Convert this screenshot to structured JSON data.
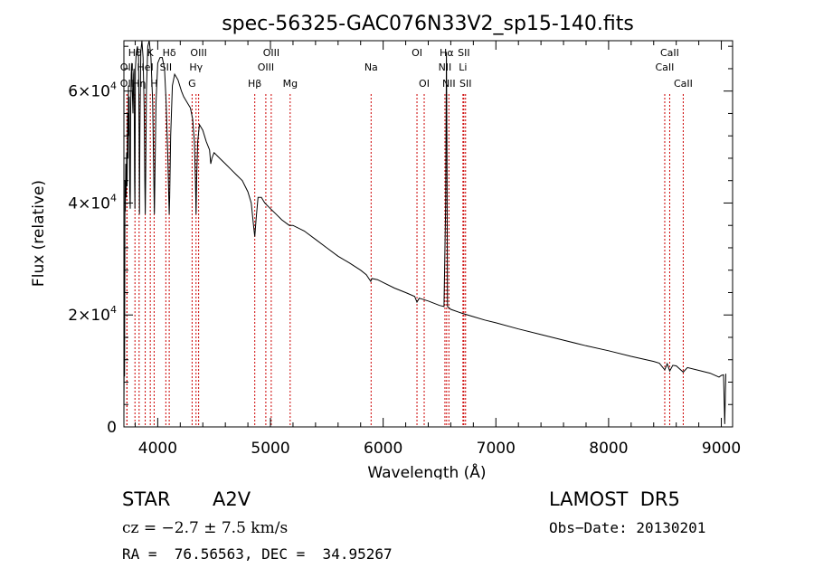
{
  "chart_data": {
    "type": "line",
    "title": "spec-56325-GAC076N33V2_sp15-140.fits",
    "xlabel": "Wavelength (Å)",
    "ylabel": "Flux (relative)",
    "xlim": [
      3700,
      9100
    ],
    "ylim": [
      0,
      69000
    ],
    "x_ticks": [
      4000,
      5000,
      6000,
      7000,
      8000,
      9000
    ],
    "x_tick_labels": [
      "4000",
      "5000",
      "6000",
      "7000",
      "8000",
      "9000"
    ],
    "y_ticks": [
      0,
      20000,
      40000,
      60000
    ],
    "y_tick_labels": [
      {
        "mant": "0",
        "exp": ""
      },
      {
        "mant": "2×10",
        "exp": "4"
      },
      {
        "mant": "4×10",
        "exp": "4"
      },
      {
        "mant": "6×10",
        "exp": "4"
      }
    ],
    "grid": false,
    "line_color": "#000000",
    "marker_color": "#cc0000",
    "series": [
      {
        "points": [
          [
            3700,
            2000
          ],
          [
            3703,
            17000
          ],
          [
            3706,
            9000
          ],
          [
            3710,
            44000
          ],
          [
            3713,
            38500
          ],
          [
            3716,
            47000
          ],
          [
            3720,
            41000
          ],
          [
            3724,
            49000
          ],
          [
            3728,
            43000
          ],
          [
            3733,
            56000
          ],
          [
            3737,
            48000
          ],
          [
            3740,
            61000
          ],
          [
            3743,
            52000
          ],
          [
            3747,
            59000
          ],
          [
            3752,
            42000
          ],
          [
            3756,
            39000
          ],
          [
            3760,
            57000
          ],
          [
            3765,
            63000
          ],
          [
            3770,
            65000
          ],
          [
            3775,
            60000
          ],
          [
            3780,
            56000
          ],
          [
            3786,
            63000
          ],
          [
            3790,
            64000
          ],
          [
            3795,
            44000
          ],
          [
            3798,
            39000
          ],
          [
            3802,
            64000
          ],
          [
            3810,
            67000
          ],
          [
            3820,
            68000
          ],
          [
            3830,
            66000
          ],
          [
            3835,
            52000
          ],
          [
            3838,
            38000
          ],
          [
            3842,
            53000
          ],
          [
            3850,
            67000
          ],
          [
            3860,
            69000
          ],
          [
            3870,
            66000
          ],
          [
            3880,
            57000
          ],
          [
            3885,
            44000
          ],
          [
            3889,
            38000
          ],
          [
            3893,
            45000
          ],
          [
            3900,
            60000
          ],
          [
            3912,
            68000
          ],
          [
            3925,
            69000
          ],
          [
            3940,
            66000
          ],
          [
            3955,
            58000
          ],
          [
            3965,
            45000
          ],
          [
            3970,
            38000
          ],
          [
            3975,
            45000
          ],
          [
            3985,
            58000
          ],
          [
            4000,
            65000
          ],
          [
            4020,
            66000
          ],
          [
            4040,
            66000
          ],
          [
            4060,
            64000
          ],
          [
            4075,
            58000
          ],
          [
            4090,
            48000
          ],
          [
            4098,
            41000
          ],
          [
            4102,
            38000
          ],
          [
            4106,
            41000
          ],
          [
            4115,
            52000
          ],
          [
            4130,
            61000
          ],
          [
            4150,
            63000
          ],
          [
            4180,
            62000
          ],
          [
            4210,
            60000
          ],
          [
            4230,
            59000
          ],
          [
            4260,
            58000
          ],
          [
            4290,
            57000
          ],
          [
            4310,
            55000
          ],
          [
            4325,
            51000
          ],
          [
            4335,
            44000
          ],
          [
            4340,
            38000
          ],
          [
            4345,
            44000
          ],
          [
            4355,
            51000
          ],
          [
            4370,
            54000
          ],
          [
            4400,
            53000
          ],
          [
            4430,
            51000
          ],
          [
            4460,
            49500
          ],
          [
            4470,
            47000
          ],
          [
            4481,
            48000
          ],
          [
            4500,
            49000
          ],
          [
            4550,
            48000
          ],
          [
            4600,
            47000
          ],
          [
            4650,
            46000
          ],
          [
            4700,
            45000
          ],
          [
            4750,
            44000
          ],
          [
            4800,
            42000
          ],
          [
            4830,
            40000
          ],
          [
            4850,
            36000
          ],
          [
            4861,
            34000
          ],
          [
            4872,
            37000
          ],
          [
            4890,
            41000
          ],
          [
            4920,
            41000
          ],
          [
            4950,
            40000
          ],
          [
            5000,
            39000
          ],
          [
            5050,
            38000
          ],
          [
            5100,
            37000
          ],
          [
            5167,
            36000
          ],
          [
            5200,
            36000
          ],
          [
            5300,
            35000
          ],
          [
            5400,
            33500
          ],
          [
            5500,
            32000
          ],
          [
            5600,
            30500
          ],
          [
            5700,
            29300
          ],
          [
            5800,
            28000
          ],
          [
            5850,
            27200
          ],
          [
            5890,
            26000
          ],
          [
            5900,
            26500
          ],
          [
            5950,
            26300
          ],
          [
            6000,
            25800
          ],
          [
            6100,
            24800
          ],
          [
            6200,
            24000
          ],
          [
            6280,
            23300
          ],
          [
            6300,
            22300
          ],
          [
            6320,
            23000
          ],
          [
            6400,
            22500
          ],
          [
            6500,
            21700
          ],
          [
            6540,
            21500
          ],
          [
            6555,
            40000
          ],
          [
            6561,
            67000
          ],
          [
            6566,
            49000
          ],
          [
            6571,
            21500
          ],
          [
            6600,
            21000
          ],
          [
            6700,
            20300
          ],
          [
            6800,
            19700
          ],
          [
            6900,
            19100
          ],
          [
            7000,
            18600
          ],
          [
            7200,
            17500
          ],
          [
            7400,
            16500
          ],
          [
            7600,
            15500
          ],
          [
            7800,
            14500
          ],
          [
            8000,
            13600
          ],
          [
            8200,
            12600
          ],
          [
            8400,
            11700
          ],
          [
            8450,
            11400
          ],
          [
            8498,
            10200
          ],
          [
            8520,
            11300
          ],
          [
            8542,
            10000
          ],
          [
            8570,
            11000
          ],
          [
            8600,
            10900
          ],
          [
            8662,
            9800
          ],
          [
            8700,
            10600
          ],
          [
            8800,
            10100
          ],
          [
            8900,
            9600
          ],
          [
            8980,
            8900
          ],
          [
            9000,
            9200
          ],
          [
            9020,
            9300
          ],
          [
            9030,
            500
          ],
          [
            9040,
            9500
          ]
        ]
      }
    ],
    "lines": [
      {
        "name": "OII",
        "x": 3727,
        "row": 2
      },
      {
        "name": "OII",
        "x": 3727,
        "row": 3
      },
      {
        "name": "Hθ",
        "x": 3798,
        "row": 1
      },
      {
        "name": "Hη",
        "x": 3835,
        "row": 3
      },
      {
        "name": "HeI",
        "x": 3889,
        "row": 2
      },
      {
        "name": "K",
        "x": 3934,
        "row": 1
      },
      {
        "name": "H",
        "x": 3968,
        "row": 3
      },
      {
        "name": "SII",
        "x": 4072,
        "row": 2
      },
      {
        "name": "Hδ",
        "x": 4102,
        "row": 1
      },
      {
        "name": "G",
        "x": 4305,
        "row": 3
      },
      {
        "name": "Hγ",
        "x": 4340,
        "row": 2
      },
      {
        "name": "OIII",
        "x": 4363,
        "row": 1
      },
      {
        "name": "Hβ",
        "x": 4861,
        "row": 3
      },
      {
        "name": "OIII",
        "x": 4959,
        "row": 2
      },
      {
        "name": "OIII",
        "x": 5007,
        "row": 1
      },
      {
        "name": "Mg",
        "x": 5175,
        "row": 3
      },
      {
        "name": "Na",
        "x": 5893,
        "row": 2
      },
      {
        "name": "OI",
        "x": 6300,
        "row": 1
      },
      {
        "name": "OI",
        "x": 6364,
        "row": 3
      },
      {
        "name": "NII",
        "x": 6548,
        "row": 2
      },
      {
        "name": "Hα",
        "x": 6563,
        "row": 1
      },
      {
        "name": "NII",
        "x": 6583,
        "row": 3
      },
      {
        "name": "Li",
        "x": 6708,
        "row": 2
      },
      {
        "name": "SII",
        "x": 6716,
        "row": 1
      },
      {
        "name": "SII",
        "x": 6731,
        "row": 3
      },
      {
        "name": "CaII",
        "x": 8498,
        "row": 2
      },
      {
        "name": "CaII",
        "x": 8542,
        "row": 1
      },
      {
        "name": "CaII",
        "x": 8662,
        "row": 3
      }
    ]
  },
  "info": {
    "object_class": "STAR",
    "subclass": "A2V",
    "survey": "LAMOST  DR5",
    "cz": "cz = −2.7 ± 7.5 km/s",
    "obs_date": "Obs−Date: 20130201",
    "coords": "RA =  76.56563, DEC =  34.95267"
  }
}
